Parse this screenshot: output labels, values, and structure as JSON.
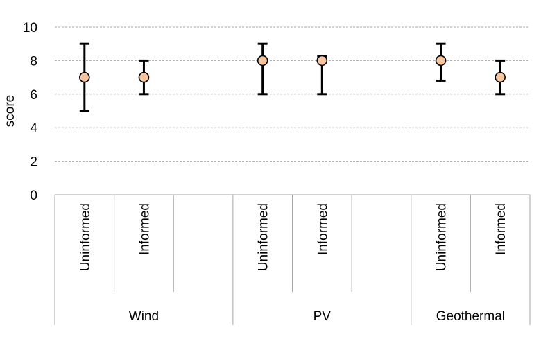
{
  "chart_data": {
    "type": "scatter",
    "ylabel": "score",
    "ylim": [
      0,
      10
    ],
    "yticks": [
      0,
      2,
      4,
      6,
      8,
      10
    ],
    "grid": true,
    "groups": [
      {
        "name": "Wind",
        "points": [
          {
            "category": "Uninformed",
            "value": 7,
            "low": 5,
            "high": 9
          },
          {
            "category": "Informed",
            "value": 7,
            "low": 6,
            "high": 8
          }
        ]
      },
      {
        "name": "PV",
        "points": [
          {
            "category": "Uninformed",
            "value": 8,
            "low": 6,
            "high": 9
          },
          {
            "category": "Informed",
            "value": 8,
            "low": 6,
            "high": 8.25
          }
        ]
      },
      {
        "name": "Geothermal",
        "points": [
          {
            "category": "Uninformed",
            "value": 8,
            "low": 6.8,
            "high": 9
          },
          {
            "category": "Informed",
            "value": 7,
            "low": 6,
            "high": 8
          }
        ]
      }
    ],
    "colors": {
      "marker_fill": "#F7C59F",
      "marker_stroke": "#000000",
      "error_bar": "#000000",
      "grid": "#A6A6A6",
      "axis": "#A6A6A6"
    }
  }
}
